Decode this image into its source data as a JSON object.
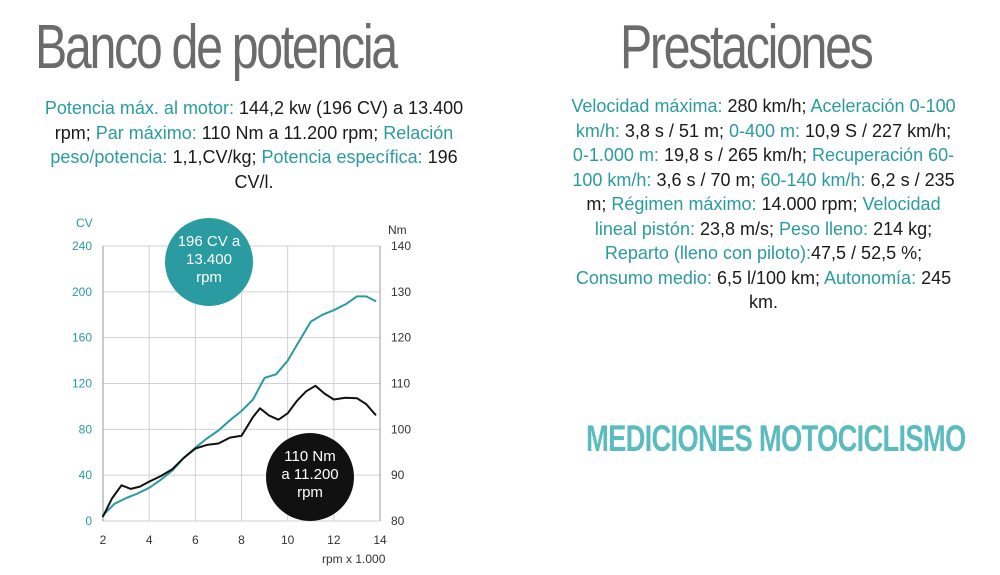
{
  "left_title": "Banco de potencia",
  "right_title": "Prestaciones",
  "brand": "MEDICIONES MOTOCICLISMO",
  "left_specs": [
    {
      "label": "Potencia máx. al motor: ",
      "value": "144,2 kw (196 CV) a 13.400 rpm; "
    },
    {
      "label": "Par máximo: ",
      "value": "110 Nm a 11.200 rpm; "
    },
    {
      "label": "Relación peso/potencia: ",
      "value": "1,1,CV/kg; "
    },
    {
      "label": "Potencia específica: ",
      "value": "196 CV/l."
    }
  ],
  "right_specs": [
    {
      "label": "Velocidad máxima: ",
      "value": "280 km/h; "
    },
    {
      "label": "Aceleración 0-100 km/h: ",
      "value": "3,8 s / 51 m; "
    },
    {
      "label": "0-400 m: ",
      "value": "10,9 S / 227 km/h; "
    },
    {
      "label": "0-1.000 m: ",
      "value": "19,8 s / 265 km/h; "
    },
    {
      "label": "Recuperación 60-100 km/h: ",
      "value": "3,6 s / 70 m; "
    },
    {
      "label": "60-140 km/h: ",
      "value": "6,2 s / 235 m; "
    },
    {
      "label": "Régimen máximo: ",
      "value": "14.000 rpm; "
    },
    {
      "label": "Velocidad lineal pistón: ",
      "value": "23,8 m/s; "
    },
    {
      "label": "Peso lleno: ",
      "value": "214 kg; "
    },
    {
      "label": "Reparto (lleno con piloto):",
      "value": "47,5 / 52,5 %; "
    },
    {
      "label": "Consumo medio: ",
      "value": "6,5 l/100 km; "
    },
    {
      "label": "Autonomía: ",
      "value": "245 km."
    }
  ],
  "chart_data": {
    "type": "line",
    "title": "",
    "xlabel": "rpm x 1.000",
    "ylabel_left": "CV",
    "ylabel_right": "Nm",
    "xlim": [
      2,
      14
    ],
    "ylim_left": [
      0,
      240
    ],
    "ylim_right": [
      80,
      140
    ],
    "x_ticks": [
      "2",
      "4",
      "6",
      "8",
      "10",
      "12",
      "14"
    ],
    "y_ticks_left": [
      "0",
      "40",
      "80",
      "120",
      "160",
      "200",
      "240"
    ],
    "y_ticks_right": [
      "80",
      "90",
      "100",
      "110",
      "120",
      "130",
      "140"
    ],
    "grid": true,
    "series": [
      {
        "name": "CV",
        "color": "#2a9ba1",
        "axis": "left",
        "x": [
          2.0,
          2.5,
          3.0,
          3.5,
          4.0,
          4.5,
          5.0,
          5.5,
          6.0,
          6.5,
          7.0,
          7.5,
          8.0,
          8.5,
          9.0,
          9.5,
          10.0,
          10.5,
          11.0,
          11.5,
          12.0,
          12.5,
          13.0,
          13.4,
          13.8
        ],
        "y": [
          5,
          15,
          20,
          24,
          29,
          36,
          44,
          55,
          64,
          72,
          79,
          88,
          96,
          106,
          125,
          128,
          140,
          157,
          174,
          180,
          184,
          189,
          196,
          196,
          192
        ]
      },
      {
        "name": "Nm",
        "color": "#111111",
        "axis": "right",
        "x": [
          2.0,
          2.4,
          2.8,
          3.2,
          3.6,
          4.0,
          4.5,
          5.0,
          5.5,
          6.0,
          6.5,
          7.0,
          7.5,
          8.0,
          8.5,
          8.8,
          9.2,
          9.6,
          10.0,
          10.4,
          10.8,
          11.2,
          11.6,
          12.0,
          12.5,
          13.0,
          13.4,
          13.8
        ],
        "y": [
          81,
          85,
          87.8,
          87,
          87.5,
          88.6,
          89.8,
          91.3,
          93.8,
          95.8,
          96.6,
          96.9,
          98.2,
          98.6,
          102.7,
          104.6,
          103,
          102.1,
          103.5,
          106.2,
          108.3,
          109.5,
          107.8,
          106.5,
          106.9,
          106.8,
          105.5,
          103.2
        ]
      }
    ],
    "annotations": [
      {
        "text": [
          "196 CV a",
          "13.400",
          "rpm"
        ],
        "color": "#2a9ba1"
      },
      {
        "text": [
          "110 Nm",
          "a 11.200",
          "rpm"
        ],
        "color": "#111111"
      }
    ]
  }
}
